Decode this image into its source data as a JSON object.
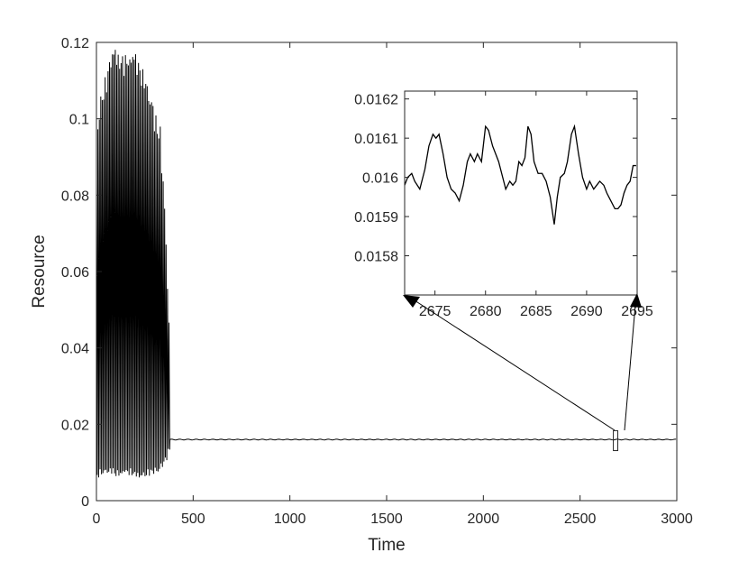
{
  "chart_data": [
    {
      "type": "line",
      "title": "",
      "xlabel": "Time",
      "ylabel": "Resource",
      "xlim": [
        0,
        3000
      ],
      "ylim": [
        0,
        0.12
      ],
      "xticks": [
        0,
        500,
        1000,
        1500,
        2000,
        2500,
        3000
      ],
      "xtick_labels": [
        "0",
        "500",
        "1000",
        "1500",
        "2000",
        "2500",
        "3000"
      ],
      "yticks": [
        0,
        0.02,
        0.04,
        0.06,
        0.08,
        0.1,
        0.12
      ],
      "ytick_labels": [
        "0",
        "0.02",
        "0.04",
        "0.06",
        "0.08",
        "0.1",
        "0.12"
      ],
      "grid": false,
      "line_color": "#000000",
      "series": [
        {
          "transient": {
            "x_range": [
              0,
              380
            ],
            "oscillation_period": 7.5,
            "envelope": {
              "x": [
                0,
                10,
                30,
                60,
                80,
                100,
                150,
                200,
                250,
                300,
                330,
                360,
                380
              ],
              "max": [
                0.085,
                0.103,
                0.108,
                0.114,
                0.119,
                0.118,
                0.117,
                0.118,
                0.112,
                0.102,
                0.098,
                0.07,
                0.04
              ],
              "min": [
                0.005,
                0.006,
                0.007,
                0.007,
                0.007,
                0.006,
                0.007,
                0.006,
                0.006,
                0.007,
                0.008,
                0.01,
                0.013
              ]
            }
          },
          "steady": {
            "x_range": [
              380,
              3000
            ],
            "y": 0.016,
            "noise_amplitude": 0.0002
          }
        }
      ],
      "zoom_box": {
        "x": [
          2672,
          2695
        ],
        "y": [
          0.0157,
          0.0162
        ]
      }
    },
    {
      "type": "line",
      "title": "",
      "xlabel": "",
      "ylabel": "",
      "xlim": [
        2672,
        2695
      ],
      "ylim": [
        0.0157,
        0.01622
      ],
      "xticks": [
        2675,
        2680,
        2685,
        2690,
        2695
      ],
      "xtick_labels": [
        "2675",
        "2680",
        "2685",
        "2690",
        "2695"
      ],
      "yticks": [
        0.0158,
        0.0159,
        0.016,
        0.0161,
        0.0162
      ],
      "ytick_labels": [
        "0.0158",
        "0.0159",
        "0.016",
        "0.0161",
        "0.0162"
      ],
      "grid": false,
      "line_color": "#000000",
      "series": [
        {
          "x": [
            2672.0,
            2672.3,
            2672.7,
            2673.0,
            2673.5,
            2674.0,
            2674.4,
            2674.8,
            2675.1,
            2675.4,
            2675.8,
            2676.2,
            2676.6,
            2677.0,
            2677.4,
            2677.8,
            2678.2,
            2678.5,
            2678.9,
            2679.2,
            2679.6,
            2680.0,
            2680.3,
            2680.7,
            2681.0,
            2681.3,
            2681.7,
            2682.0,
            2682.4,
            2682.7,
            2683.0,
            2683.3,
            2683.6,
            2683.9,
            2684.2,
            2684.5,
            2684.8,
            2685.2,
            2685.6,
            2686.0,
            2686.4,
            2686.8,
            2687.1,
            2687.4,
            2687.8,
            2688.1,
            2688.5,
            2688.8,
            2689.2,
            2689.6,
            2690.0,
            2690.3,
            2690.7,
            2691.0,
            2691.3,
            2691.7,
            2692.0,
            2692.4,
            2692.8,
            2693.1,
            2693.4,
            2693.7,
            2694.0,
            2694.3,
            2694.6,
            2694.9
          ],
          "y": [
            0.01598,
            0.016,
            0.01601,
            0.01599,
            0.01597,
            0.01602,
            0.01608,
            0.01611,
            0.0161,
            0.01611,
            0.01606,
            0.016,
            0.01597,
            0.01596,
            0.01594,
            0.01598,
            0.01604,
            0.01606,
            0.01604,
            0.01606,
            0.01604,
            0.01613,
            0.01612,
            0.01608,
            0.01606,
            0.01604,
            0.016,
            0.01597,
            0.01599,
            0.01598,
            0.01599,
            0.01604,
            0.01603,
            0.01605,
            0.01613,
            0.01611,
            0.01604,
            0.01601,
            0.01601,
            0.01599,
            0.01595,
            0.01588,
            0.01595,
            0.016,
            0.01601,
            0.01604,
            0.01611,
            0.01613,
            0.01606,
            0.016,
            0.01597,
            0.01599,
            0.01597,
            0.01598,
            0.01599,
            0.01598,
            0.01596,
            0.01594,
            0.01592,
            0.01592,
            0.01593,
            0.01596,
            0.01598,
            0.01599,
            0.01603,
            0.01603
          ]
        }
      ]
    }
  ]
}
